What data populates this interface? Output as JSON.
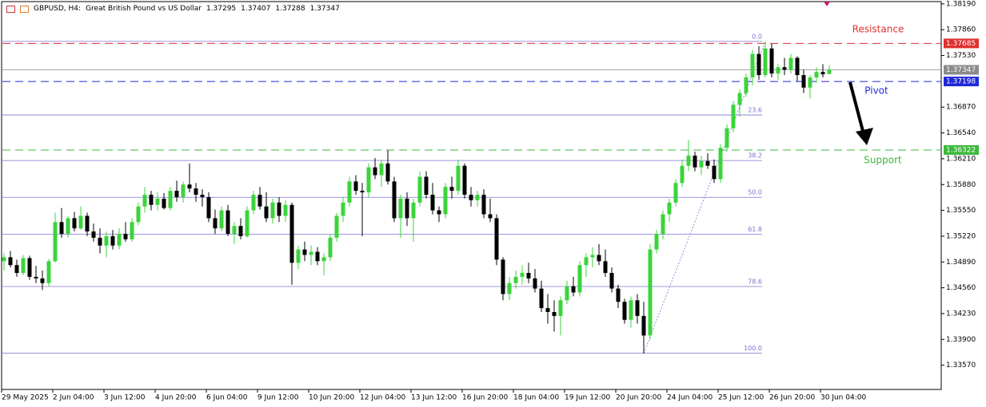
{
  "header": {
    "symbol": "GBPUSD, H4:",
    "description": "Great British Pound vs US Dollar",
    "ohlc": [
      1.37295,
      1.37407,
      1.37288,
      1.37347
    ]
  },
  "chart_data": {
    "type": "candlestick",
    "categories": [
      "29 May 2025",
      null,
      null,
      null,
      null,
      null,
      null,
      null,
      "2 Jun 04:00",
      null,
      null,
      null,
      null,
      null,
      null,
      null,
      "3 Jun 12:00",
      null,
      null,
      null,
      null,
      null,
      null,
      null,
      "4 Jun 20:00",
      null,
      null,
      null,
      null,
      null,
      null,
      null,
      "6 Jun 04:00",
      null,
      null,
      null,
      null,
      null,
      null,
      null,
      "9 Jun 12:00",
      null,
      null,
      null,
      null,
      null,
      null,
      null,
      "10 Jun 20:00",
      null,
      null,
      null,
      null,
      null,
      null,
      null,
      "12 Jun 04:00",
      null,
      null,
      null,
      null,
      null,
      null,
      null,
      "13 Jun 12:00",
      null,
      null,
      null,
      null,
      null,
      null,
      null,
      "16 Jun 20:00",
      null,
      null,
      null,
      null,
      null,
      null,
      null,
      "18 Jun 04:00",
      null,
      null,
      null,
      null,
      null,
      null,
      null,
      "19 Jun 12:00",
      null,
      null,
      null,
      null,
      null,
      null,
      null,
      "20 Jun 20:00",
      null,
      null,
      null,
      null,
      null,
      null,
      null,
      "24 Jun 04:00",
      null,
      null,
      null,
      null,
      null,
      null,
      null,
      "25 Jun 12:00",
      null,
      null,
      null,
      null,
      null,
      null,
      null,
      "26 Jun 20:00",
      null,
      null,
      null,
      null,
      null,
      null,
      null,
      "30 Jun 04:00",
      null
    ],
    "ohlc": [
      [
        1.349,
        1.35,
        1.3478,
        1.3495
      ],
      [
        1.3495,
        1.3503,
        1.3482,
        1.3485
      ],
      [
        1.3485,
        1.3492,
        1.347,
        1.3475
      ],
      [
        1.3475,
        1.3498,
        1.3472,
        1.3494
      ],
      [
        1.3494,
        1.3497,
        1.3466,
        1.347
      ],
      [
        1.347,
        1.3484,
        1.3462,
        1.3468
      ],
      [
        1.3468,
        1.3478,
        1.3453,
        1.3462
      ],
      [
        1.3462,
        1.3493,
        1.3458,
        1.349
      ],
      [
        1.349,
        1.3552,
        1.3488,
        1.354
      ],
      [
        1.354,
        1.3558,
        1.352,
        1.3525
      ],
      [
        1.3525,
        1.3548,
        1.352,
        1.3545
      ],
      [
        1.3545,
        1.3553,
        1.3528,
        1.3532
      ],
      [
        1.3532,
        1.356,
        1.353,
        1.3548
      ],
      [
        1.3548,
        1.3552,
        1.3522,
        1.3528
      ],
      [
        1.3528,
        1.3538,
        1.3515,
        1.352
      ],
      [
        1.352,
        1.3532,
        1.35,
        1.351
      ],
      [
        1.351,
        1.3528,
        1.3495,
        1.3522
      ],
      [
        1.3522,
        1.353,
        1.3505,
        1.351
      ],
      [
        1.351,
        1.3532,
        1.3505,
        1.3525
      ],
      [
        1.3525,
        1.354,
        1.3515,
        1.3518
      ],
      [
        1.3518,
        1.3545,
        1.3515,
        1.354
      ],
      [
        1.354,
        1.3565,
        1.3536,
        1.356
      ],
      [
        1.356,
        1.3585,
        1.3552,
        1.3575
      ],
      [
        1.3575,
        1.358,
        1.3555,
        1.3562
      ],
      [
        1.3562,
        1.3578,
        1.3555,
        1.357
      ],
      [
        1.357,
        1.3577,
        1.3556,
        1.3558
      ],
      [
        1.3558,
        1.3585,
        1.3555,
        1.358
      ],
      [
        1.358,
        1.3593,
        1.3566,
        1.3572
      ],
      [
        1.3572,
        1.3592,
        1.3565,
        1.3588
      ],
      [
        1.3588,
        1.3615,
        1.3578,
        1.3583
      ],
      [
        1.3583,
        1.359,
        1.3566,
        1.3575
      ],
      [
        1.3575,
        1.3582,
        1.356,
        1.3572
      ],
      [
        1.3572,
        1.3578,
        1.354,
        1.3545
      ],
      [
        1.3545,
        1.3556,
        1.3525,
        1.3532
      ],
      [
        1.3532,
        1.356,
        1.3528,
        1.3555
      ],
      [
        1.3555,
        1.3562,
        1.3522,
        1.3525
      ],
      [
        1.3525,
        1.354,
        1.3512,
        1.3535
      ],
      [
        1.3535,
        1.3545,
        1.3518,
        1.3522
      ],
      [
        1.3522,
        1.356,
        1.352,
        1.3555
      ],
      [
        1.3555,
        1.358,
        1.355,
        1.3575
      ],
      [
        1.3575,
        1.3585,
        1.3556,
        1.356
      ],
      [
        1.356,
        1.3578,
        1.354,
        1.3545
      ],
      [
        1.3545,
        1.357,
        1.3538,
        1.3565
      ],
      [
        1.3565,
        1.3572,
        1.354,
        1.3548
      ],
      [
        1.3548,
        1.3568,
        1.354,
        1.3562
      ],
      [
        1.3562,
        1.3565,
        1.346,
        1.3488
      ],
      [
        1.3488,
        1.351,
        1.348,
        1.3505
      ],
      [
        1.3505,
        1.3515,
        1.349,
        1.3498
      ],
      [
        1.3498,
        1.351,
        1.3485,
        1.3502
      ],
      [
        1.3502,
        1.3508,
        1.3485,
        1.349
      ],
      [
        1.349,
        1.35,
        1.3472,
        1.3495
      ],
      [
        1.3495,
        1.3525,
        1.349,
        1.352
      ],
      [
        1.352,
        1.3552,
        1.3515,
        1.3548
      ],
      [
        1.3548,
        1.3572,
        1.354,
        1.3565
      ],
      [
        1.3565,
        1.3598,
        1.356,
        1.3592
      ],
      [
        1.3592,
        1.36,
        1.3575,
        1.358
      ],
      [
        1.358,
        1.359,
        1.3522,
        1.3578
      ],
      [
        1.3578,
        1.3615,
        1.3572,
        1.361
      ],
      [
        1.361,
        1.3622,
        1.3595,
        1.36
      ],
      [
        1.36,
        1.362,
        1.3585,
        1.3615
      ],
      [
        1.3615,
        1.3632,
        1.3588,
        1.3592
      ],
      [
        1.3592,
        1.3598,
        1.354,
        1.3545
      ],
      [
        1.3545,
        1.3575,
        1.352,
        1.357
      ],
      [
        1.357,
        1.3578,
        1.3535,
        1.3545
      ],
      [
        1.3545,
        1.357,
        1.3515,
        1.3565
      ],
      [
        1.3565,
        1.3605,
        1.356,
        1.3598
      ],
      [
        1.3598,
        1.3605,
        1.357,
        1.3575
      ],
      [
        1.3575,
        1.359,
        1.355,
        1.3555
      ],
      [
        1.3555,
        1.356,
        1.354,
        1.355
      ],
      [
        1.355,
        1.359,
        1.3545,
        1.3585
      ],
      [
        1.3585,
        1.3598,
        1.357,
        1.358
      ],
      [
        1.358,
        1.362,
        1.3575,
        1.3612
      ],
      [
        1.3612,
        1.3615,
        1.357,
        1.3575
      ],
      [
        1.3575,
        1.3585,
        1.356,
        1.3568
      ],
      [
        1.3568,
        1.358,
        1.356,
        1.3575
      ],
      [
        1.3575,
        1.3582,
        1.3545,
        1.355
      ],
      [
        1.355,
        1.357,
        1.354,
        1.3545
      ],
      [
        1.3545,
        1.355,
        1.3485,
        1.3492
      ],
      [
        1.3492,
        1.3495,
        1.344,
        1.3448
      ],
      [
        1.3448,
        1.347,
        1.344,
        1.3462
      ],
      [
        1.3462,
        1.3478,
        1.3455,
        1.347
      ],
      [
        1.347,
        1.3485,
        1.346,
        1.3475
      ],
      [
        1.3475,
        1.3488,
        1.3462,
        1.3468
      ],
      [
        1.3468,
        1.348,
        1.345,
        1.3455
      ],
      [
        1.3455,
        1.3465,
        1.3425,
        1.343
      ],
      [
        1.343,
        1.3448,
        1.341,
        1.3425
      ],
      [
        1.3425,
        1.344,
        1.34,
        1.342
      ],
      [
        1.342,
        1.3445,
        1.3395,
        1.344
      ],
      [
        1.344,
        1.3465,
        1.3435,
        1.3458
      ],
      [
        1.3458,
        1.347,
        1.3445,
        1.345
      ],
      [
        1.345,
        1.349,
        1.3445,
        1.3485
      ],
      [
        1.3485,
        1.35,
        1.347,
        1.3495
      ],
      [
        1.3495,
        1.3508,
        1.3482,
        1.3498
      ],
      [
        1.3498,
        1.3512,
        1.3485,
        1.349
      ],
      [
        1.349,
        1.3505,
        1.347,
        1.3475
      ],
      [
        1.3475,
        1.3482,
        1.345,
        1.3455
      ],
      [
        1.3455,
        1.346,
        1.343,
        1.3438
      ],
      [
        1.3438,
        1.3442,
        1.341,
        1.3415
      ],
      [
        1.3415,
        1.3445,
        1.3405,
        1.344
      ],
      [
        1.344,
        1.3448,
        1.341,
        1.342
      ],
      [
        1.342,
        1.3438,
        1.3372,
        1.3395
      ],
      [
        1.3395,
        1.3512,
        1.339,
        1.3505
      ],
      [
        1.3505,
        1.353,
        1.35,
        1.3525
      ],
      [
        1.3525,
        1.3555,
        1.3518,
        1.355
      ],
      [
        1.355,
        1.357,
        1.354,
        1.3565
      ],
      [
        1.3565,
        1.3595,
        1.356,
        1.359
      ],
      [
        1.359,
        1.362,
        1.3585,
        1.3612
      ],
      [
        1.3612,
        1.3645,
        1.3605,
        1.3625
      ],
      [
        1.3625,
        1.363,
        1.3605,
        1.361
      ],
      [
        1.361,
        1.3625,
        1.36,
        1.3618
      ],
      [
        1.3618,
        1.3628,
        1.3608,
        1.3612
      ],
      [
        1.3612,
        1.362,
        1.359,
        1.3595
      ],
      [
        1.3595,
        1.364,
        1.359,
        1.3635
      ],
      [
        1.3635,
        1.3665,
        1.363,
        1.366
      ],
      [
        1.366,
        1.3695,
        1.3655,
        1.369
      ],
      [
        1.369,
        1.371,
        1.3675,
        1.3705
      ],
      [
        1.3705,
        1.373,
        1.37,
        1.3725
      ],
      [
        1.3725,
        1.376,
        1.3715,
        1.3755
      ],
      [
        1.3755,
        1.3765,
        1.3722,
        1.3728
      ],
      [
        1.3728,
        1.3771,
        1.3725,
        1.3762
      ],
      [
        1.3762,
        1.3768,
        1.3725,
        1.373
      ],
      [
        1.373,
        1.3742,
        1.3722,
        1.3738
      ],
      [
        1.3738,
        1.375,
        1.3728,
        1.3735
      ],
      [
        1.3735,
        1.3755,
        1.373,
        1.375
      ],
      [
        1.375,
        1.3752,
        1.372,
        1.3728
      ],
      [
        1.3728,
        1.3735,
        1.3705,
        1.3712
      ],
      [
        1.3712,
        1.3728,
        1.3698,
        1.3725
      ],
      [
        1.3725,
        1.3738,
        1.3718,
        1.3732
      ],
      [
        1.3732,
        1.3742,
        1.3725,
        1.3729
      ],
      [
        1.37295,
        1.37407,
        1.37288,
        1.37347
      ]
    ],
    "up_color": "#3bd43b",
    "down_color": "#000000",
    "ylim": [
      1.3326,
      1.3824
    ],
    "yticks": [
      {
        "value": 1.3819,
        "label": "1.38190"
      },
      {
        "value": 1.3786,
        "label": "1.37860"
      },
      {
        "value": 1.3753,
        "label": "1.37530"
      },
      {
        "value": 1.3687,
        "label": "1.36870"
      },
      {
        "value": 1.3654,
        "label": "1.36540"
      },
      {
        "value": 1.3621,
        "label": "1.36210"
      },
      {
        "value": 1.3588,
        "label": "1.35880"
      },
      {
        "value": 1.3555,
        "label": "1.35550"
      },
      {
        "value": 1.3522,
        "label": "1.35220"
      },
      {
        "value": 1.3489,
        "label": "1.34890"
      },
      {
        "value": 1.3456,
        "label": "1.34560"
      },
      {
        "value": 1.3423,
        "label": "1.34230"
      },
      {
        "value": 1.339,
        "label": "1.33900"
      },
      {
        "value": 1.3357,
        "label": "1.33570"
      }
    ],
    "levels": [
      {
        "name": "Resistance",
        "value": 1.37685,
        "color": "#e03030"
      },
      {
        "name": "Pivot",
        "value": 1.37198,
        "color": "#2028d8"
      },
      {
        "name": "Support",
        "value": 1.36322,
        "color": "#3cb83c"
      }
    ],
    "current_price": {
      "value": 1.37347,
      "color": "#8a8a8a"
    },
    "fib": {
      "high": 1.37711,
      "low": 1.33723,
      "color": "#8070d0",
      "levels": [
        {
          "value": 0,
          "label": "0.0"
        },
        23.6,
        38.2,
        {
          "value": 50,
          "label": "50.0"
        },
        61.8,
        78.6,
        {
          "value": 100,
          "label": "100.0"
        }
      ]
    }
  }
}
